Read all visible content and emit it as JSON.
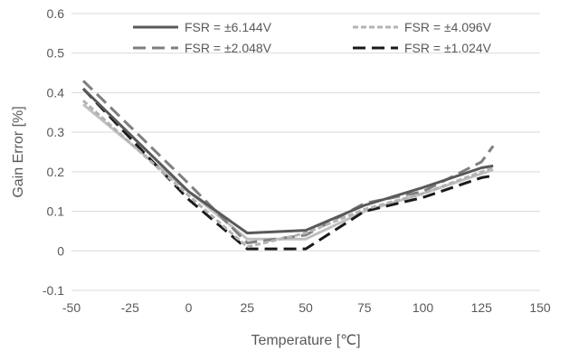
{
  "chart_data": {
    "type": "line",
    "title": "",
    "xlabel": "Temperature [℃]",
    "ylabel": "Gain Error [%]",
    "xlim": [
      -50,
      150
    ],
    "ylim": [
      -0.1,
      0.6
    ],
    "x_ticks": [
      -50,
      -25,
      0,
      25,
      50,
      75,
      100,
      125,
      150
    ],
    "y_ticks": [
      -0.1,
      0,
      0.1,
      0.2,
      0.3,
      0.4,
      0.5,
      0.6
    ],
    "x_tick_labels": [
      "-50",
      "-25",
      "0",
      "25",
      "50",
      "75",
      "100",
      "125",
      "150"
    ],
    "y_tick_labels": [
      "-0.1",
      "0",
      "0.1",
      "0.2",
      "0.3",
      "0.4",
      "0.5",
      "0.6"
    ],
    "grid": "horizontal",
    "legend_position": "top",
    "x": [
      -45,
      0,
      25,
      50,
      75,
      100,
      125,
      130
    ],
    "series": [
      {
        "name": "FSR = ±6.144V",
        "color": "#595959",
        "dash": "solid",
        "values": [
          0.41,
          0.15,
          0.045,
          0.052,
          0.115,
          0.16,
          0.21,
          0.215
        ]
      },
      {
        "name": "FSR = ±4.096V",
        "color": "#b3b3b3",
        "dash": "short",
        "values": [
          0.38,
          0.14,
          0.01,
          0.045,
          0.105,
          0.145,
          0.2,
          0.21
        ]
      },
      {
        "name": "FSR = ±2.048V",
        "color": "#7f7f7f",
        "dash": "long",
        "values": [
          0.43,
          0.17,
          0.02,
          0.04,
          0.12,
          0.15,
          0.225,
          0.265
        ]
      },
      {
        "name": "FSR = ±1.024V",
        "color": "#1a1a1a",
        "dash": "long",
        "values": [
          0.41,
          0.13,
          0.005,
          0.005,
          0.1,
          0.135,
          0.185,
          0.19
        ]
      },
      {
        "name": "",
        "color": "#bfbfbf",
        "dash": "solid",
        "values": [
          0.37,
          0.15,
          0.03,
          0.03,
          0.1,
          0.145,
          0.195,
          0.205
        ]
      }
    ]
  }
}
